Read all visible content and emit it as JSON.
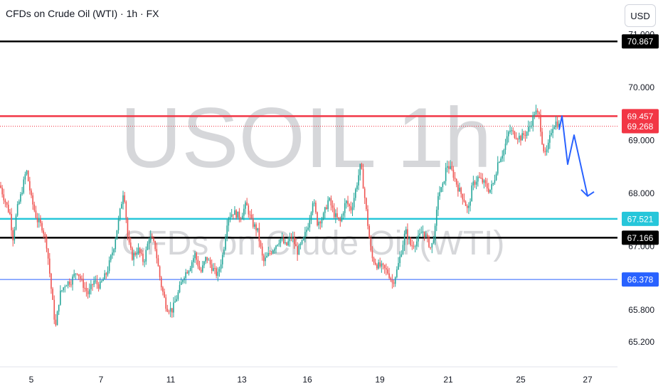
{
  "header": {
    "title": "CFDs on Crude Oil (WTI) · 1h · FX",
    "currency": "USD"
  },
  "watermark": {
    "symbol": "USOIL 1h",
    "description": "CFDs on Crude Oil (WTI)"
  },
  "colors": {
    "up": "#26a69a",
    "down": "#ef5350",
    "red_line": "#f23645",
    "cyan_line": "#26c6da",
    "black_line": "#000000",
    "blue_line": "#2962ff",
    "projection": "#2962ff",
    "axis_bg": "#ffffff"
  },
  "chart_data": {
    "type": "candlestick",
    "title": "CFDs on Crude Oil (WTI) · 1h · FX",
    "x_ticks": [
      "5",
      "7",
      "11",
      "13",
      "16",
      "19",
      "21",
      "25",
      "27"
    ],
    "y_ticks": [
      "71.000",
      "70.000",
      "69.000",
      "68.000",
      "67.000",
      "65.800",
      "65.200"
    ],
    "ylim": [
      64.9,
      71.3
    ],
    "price_lines": [
      {
        "name": "top-black",
        "value": 70.867,
        "label": "70.867",
        "color": "#000000"
      },
      {
        "name": "red",
        "value": 69.457,
        "label": "69.457",
        "color": "#f23645"
      },
      {
        "name": "current",
        "value": 69.268,
        "label": "69.268",
        "color": "#f23645",
        "dotted": true
      },
      {
        "name": "cyan",
        "value": 67.521,
        "label": "67.521",
        "color": "#26c6da"
      },
      {
        "name": "mid-black",
        "value": 67.166,
        "label": "67.166",
        "color": "#000000"
      },
      {
        "name": "blue",
        "value": 66.378,
        "label": "66.378",
        "color": "#2962ff"
      }
    ],
    "price_path": [
      [
        0,
        68.15
      ],
      [
        6,
        67.9
      ],
      [
        14,
        67.6
      ],
      [
        18,
        67.15
      ],
      [
        24,
        67.7
      ],
      [
        30,
        68.0
      ],
      [
        37,
        68.45
      ],
      [
        44,
        67.9
      ],
      [
        52,
        67.5
      ],
      [
        60,
        67.35
      ],
      [
        66,
        67.0
      ],
      [
        72,
        66.2
      ],
      [
        78,
        65.45
      ],
      [
        84,
        66.1
      ],
      [
        92,
        66.3
      ],
      [
        100,
        66.35
      ],
      [
        108,
        66.55
      ],
      [
        116,
        66.3
      ],
      [
        124,
        66.1
      ],
      [
        132,
        66.35
      ],
      [
        140,
        66.25
      ],
      [
        150,
        66.5
      ],
      [
        160,
        67.0
      ],
      [
        168,
        67.6
      ],
      [
        174,
        68.1
      ],
      [
        180,
        67.1
      ],
      [
        186,
        66.8
      ],
      [
        194,
        66.95
      ],
      [
        202,
        66.7
      ],
      [
        210,
        67.2
      ],
      [
        218,
        67.0
      ],
      [
        226,
        66.3
      ],
      [
        234,
        65.85
      ],
      [
        242,
        65.8
      ],
      [
        250,
        66.1
      ],
      [
        258,
        66.45
      ],
      [
        266,
        66.6
      ],
      [
        274,
        66.85
      ],
      [
        282,
        66.5
      ],
      [
        290,
        66.8
      ],
      [
        298,
        66.6
      ],
      [
        306,
        66.45
      ],
      [
        314,
        66.9
      ],
      [
        320,
        67.55
      ],
      [
        328,
        67.65
      ],
      [
        338,
        67.55
      ],
      [
        346,
        67.8
      ],
      [
        354,
        67.45
      ],
      [
        362,
        67.3
      ],
      [
        370,
        66.7
      ],
      [
        378,
        66.85
      ],
      [
        386,
        67.0
      ],
      [
        394,
        67.15
      ],
      [
        402,
        67.0
      ],
      [
        410,
        67.2
      ],
      [
        418,
        66.9
      ],
      [
        426,
        67.1
      ],
      [
        434,
        67.45
      ],
      [
        440,
        67.9
      ],
      [
        446,
        67.45
      ],
      [
        454,
        67.55
      ],
      [
        462,
        67.9
      ],
      [
        470,
        67.6
      ],
      [
        478,
        67.45
      ],
      [
        486,
        67.85
      ],
      [
        494,
        67.7
      ],
      [
        502,
        68.2
      ],
      [
        507,
        68.55
      ],
      [
        512,
        68.0
      ],
      [
        518,
        67.3
      ],
      [
        522,
        66.8
      ],
      [
        530,
        66.65
      ],
      [
        538,
        66.6
      ],
      [
        546,
        66.5
      ],
      [
        552,
        66.3
      ],
      [
        558,
        66.55
      ],
      [
        564,
        66.9
      ],
      [
        570,
        67.3
      ],
      [
        578,
        67.0
      ],
      [
        586,
        67.1
      ],
      [
        594,
        67.3
      ],
      [
        600,
        67.15
      ],
      [
        606,
        66.95
      ],
      [
        612,
        67.35
      ],
      [
        616,
        68.0
      ],
      [
        622,
        68.1
      ],
      [
        628,
        68.55
      ],
      [
        636,
        68.4
      ],
      [
        644,
        68.1
      ],
      [
        652,
        67.9
      ],
      [
        658,
        67.65
      ],
      [
        664,
        68.15
      ],
      [
        672,
        68.3
      ],
      [
        680,
        68.2
      ],
      [
        688,
        68.05
      ],
      [
        694,
        68.2
      ],
      [
        700,
        68.6
      ],
      [
        708,
        68.8
      ],
      [
        716,
        69.2
      ],
      [
        724,
        69.1
      ],
      [
        732,
        69.05
      ],
      [
        740,
        69.15
      ],
      [
        746,
        69.3
      ],
      [
        752,
        69.55
      ],
      [
        758,
        69.45
      ],
      [
        762,
        69.0
      ],
      [
        766,
        68.7
      ],
      [
        770,
        68.85
      ],
      [
        776,
        69.25
      ],
      [
        782,
        69.35
      ],
      [
        786,
        69.27
      ]
    ],
    "projection": [
      [
        786,
        69.2
      ],
      [
        790,
        69.46
      ],
      [
        798,
        68.55
      ],
      [
        807,
        69.1
      ],
      [
        826,
        67.95
      ]
    ],
    "x_range": [
      0,
      868
    ]
  }
}
